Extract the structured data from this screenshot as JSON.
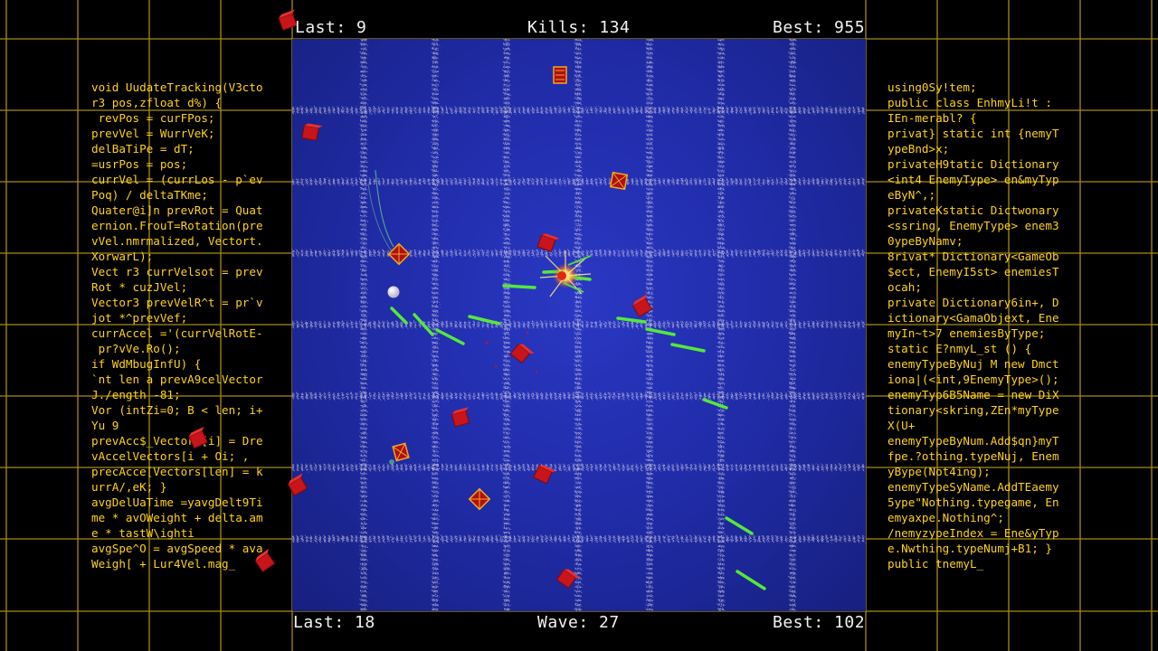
{
  "hud_top": {
    "last": "Last: 9",
    "kills": "Kills: 134",
    "best": "Best: 955"
  },
  "hud_bottom": {
    "last": "Last: 18",
    "wave": "Wave: 27",
    "best": "Best: 102"
  },
  "code_left": [
    "void UudateTracking(V3cto",
    "r3 pos,zfloat d%) {",
    " revPos = curFPos;",
    "prevVel = WurrVeK;",
    "delBaTiPe = dT;",
    "=usrPos = pos;",
    "currVel = (currLos - p`ev",
    "Poq) / deltaTKme;",
    "Quater@i]n prevRot = Quat",
    "ernion.FrouT=Rotation(pre",
    "vVel.nmrmalized, Vectort.",
    "XorwarL);",
    "Vect r3 currVelsot = prev",
    "Rot * cuzJVel;",
    "Vector3 prevVelR^t = pr`v",
    "jot *^prevVef;",
    "currAccel ='(currVelRotE-",
    " pr?vVe.Ro();",
    "if WdMbugInfU) {",
    "`nt len a prevA9celVector",
    "J./ength -81;",
    "Vor (intZi=0; B < len; i+",
    "Yu 9",
    "prevAcc$_Vectors[i] = Dre",
    "vAccelVectors[i + Oi; ,",
    "precAcce[Vectors[len] = k",
    "urrA/,eK; }",
    "avgDelUaTime =yavgDelt9Ti",
    "me * avOWeight + delta.am",
    "e * tastW\\ighti",
    "avgSpe^O = avgSpeed * ava",
    "Weigh[ + Lur4Vel.mag_"
  ],
  "code_right": [
    "using0Sy!tem;",
    "public class EnhmyLi!t :",
    "IEn-merabl? {",
    "privat} static int {nemyT",
    "ypeBnd>x;",
    "privateH9tatic Dictionary",
    "<int4 EnemyType> en&myTyp",
    "eByN^,;",
    "privateKstatic Dictwonary",
    "<ssring, EnemyType> enem3",
    "0ypeByNamv;",
    "8rivat* Dictionary<GameOb",
    "$ect, EnemyI5st> enemiesT",
    "ocah;",
    "private Dictionary6in+, D",
    "ictionary<GamaObjext, Ene",
    "myIn~t>7 enemiesByType;",
    "static E?nmyL_st () {",
    "enemyTypeByNuj M new Dmct",
    "iona|(<int,9EnemyType>();",
    "enemyTyp6B5Name = new DiX",
    "tionary<skring,ZEn*myType",
    "X(U+",
    "enemyTypeByNum.Add$qn}myT",
    "fpe.?othing.typeNuj, Enem",
    "yBype(Not4ing);",
    "enemyTypeSyName.AddTEaemy",
    "5ype\"Nothing.typegame, En",
    "emyaxpe.Nothing^;",
    "/nemyzypeIndex = Ene&yTyp",
    "e.Nwthing.typeNumj+B1; }",
    "public tnemyL_"
  ],
  "colors": {
    "grid": "#b89a1e",
    "code": "#ffd21a",
    "arena": "#2430b0",
    "laser": "#55e83a",
    "enemy": "#c8141a",
    "spawner": "#e0a010"
  },
  "icons": {
    "player": "white-ball-icon",
    "enemy": "red-cube-icon",
    "spawner": "spiky-crate-icon",
    "explosion": "burst-icon"
  }
}
